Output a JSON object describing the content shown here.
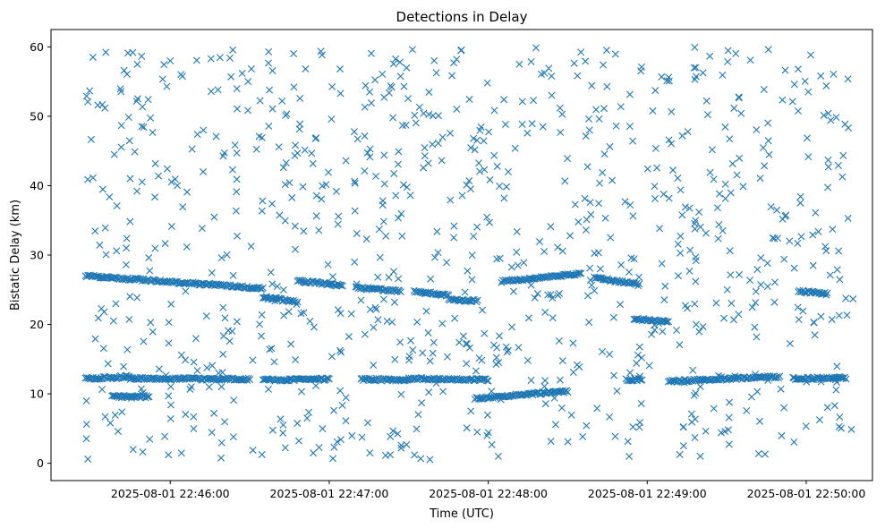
{
  "chart_data": {
    "type": "scatter",
    "title": "Detections in Delay",
    "xlabel": "Time (UTC)",
    "ylabel": "Bistatic Delay (km)",
    "marker": "x",
    "color": "#1f77b4",
    "grid": false,
    "legend": "none",
    "x_is_time": true,
    "x_ticks": [
      "2025-08-01 22:46:00",
      "2025-08-01 22:47:00",
      "2025-08-01 22:48:00",
      "2025-08-01 22:49:00",
      "2025-08-01 22:50:00"
    ],
    "xlim": [
      "2025-08-01 22:45:15",
      "2025-08-01 22:50:25"
    ],
    "y_ticks": [
      0,
      10,
      20,
      30,
      40,
      50,
      60
    ],
    "ylim": [
      -2.5,
      62.5
    ],
    "tracks": [
      {
        "from": "2025-08-01 22:45:28",
        "to": "2025-08-01 22:46:35",
        "delay_from": 27.0,
        "delay_to": 25.2
      },
      {
        "from": "2025-08-01 22:46:35",
        "to": "2025-08-01 22:46:47",
        "delay_from": 23.9,
        "delay_to": 23.3
      },
      {
        "from": "2025-08-01 22:46:48",
        "to": "2025-08-01 22:47:05",
        "delay_from": 26.3,
        "delay_to": 25.6
      },
      {
        "from": "2025-08-01 22:47:10",
        "to": "2025-08-01 22:47:27",
        "delay_from": 25.3,
        "delay_to": 24.8
      },
      {
        "from": "2025-08-01 22:47:32",
        "to": "2025-08-01 22:47:45",
        "delay_from": 24.8,
        "delay_to": 24.2
      },
      {
        "from": "2025-08-01 22:47:45",
        "to": "2025-08-01 22:47:56",
        "delay_from": 23.6,
        "delay_to": 23.4
      },
      {
        "from": "2025-08-01 22:48:05",
        "to": "2025-08-01 22:48:35",
        "delay_from": 26.2,
        "delay_to": 27.3
      },
      {
        "from": "2025-08-01 22:48:40",
        "to": "2025-08-01 22:48:57",
        "delay_from": 26.8,
        "delay_to": 25.7
      },
      {
        "from": "2025-08-01 22:48:55",
        "to": "2025-08-01 22:49:08",
        "delay_from": 20.8,
        "delay_to": 20.4
      },
      {
        "from": "2025-08-01 22:49:57",
        "to": "2025-08-01 22:50:08",
        "delay_from": 24.8,
        "delay_to": 24.4
      },
      {
        "from": "2025-08-01 22:45:28",
        "to": "2025-08-01 22:45:45",
        "delay_from": 12.2,
        "delay_to": 12.5
      },
      {
        "from": "2025-08-01 22:45:45",
        "to": "2025-08-01 22:46:30",
        "delay_from": 12.2,
        "delay_to": 12.1
      },
      {
        "from": "2025-08-01 22:46:35",
        "to": "2025-08-01 22:47:00",
        "delay_from": 12.0,
        "delay_to": 12.1
      },
      {
        "from": "2025-08-01 22:47:12",
        "to": "2025-08-01 22:47:30",
        "delay_from": 12.1,
        "delay_to": 12.0
      },
      {
        "from": "2025-08-01 22:47:30",
        "to": "2025-08-01 22:48:00",
        "delay_from": 12.2,
        "delay_to": 12.0
      },
      {
        "from": "2025-08-01 22:47:55",
        "to": "2025-08-01 22:48:30",
        "delay_from": 9.3,
        "delay_to": 10.4
      },
      {
        "from": "2025-08-01 22:49:08",
        "to": "2025-08-01 22:49:50",
        "delay_from": 11.8,
        "delay_to": 12.5
      },
      {
        "from": "2025-08-01 22:49:55",
        "to": "2025-08-01 22:50:15",
        "delay_from": 12.2,
        "delay_to": 12.3
      },
      {
        "from": "2025-08-01 22:45:38",
        "to": "2025-08-01 22:45:52",
        "delay_from": 9.6,
        "delay_to": 9.6
      },
      {
        "from": "2025-08-01 22:48:52",
        "to": "2025-08-01 22:48:58",
        "delay_from": 12.0,
        "delay_to": 12.1
      }
    ]
  }
}
